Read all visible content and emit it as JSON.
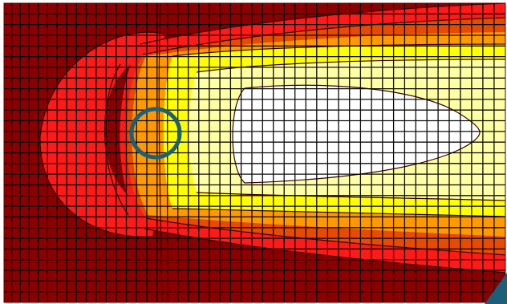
{
  "figure": {
    "description_visible_text": "",
    "colors": {
      "background": "#ffffff",
      "darkest_red": "#8b0000",
      "red": "#ff1a1a",
      "dark_orange": "#e84a00",
      "orange": "#ff9900",
      "yellow": "#ffff00",
      "light_yellow": "#ffffa6",
      "white_core": "#ffffff",
      "grid_lines": "#000000",
      "ring": "#1b5f7a",
      "corner_accent": "#1b5f7a"
    },
    "mesh": {
      "columns": 48,
      "rows": 28
    },
    "markers": [
      {
        "name": "ring-marker",
        "shape": "circle",
        "color": "#1b5f7a"
      },
      {
        "name": "corner-accent",
        "shape": "triangle",
        "color": "#1b5f7a"
      }
    ]
  }
}
